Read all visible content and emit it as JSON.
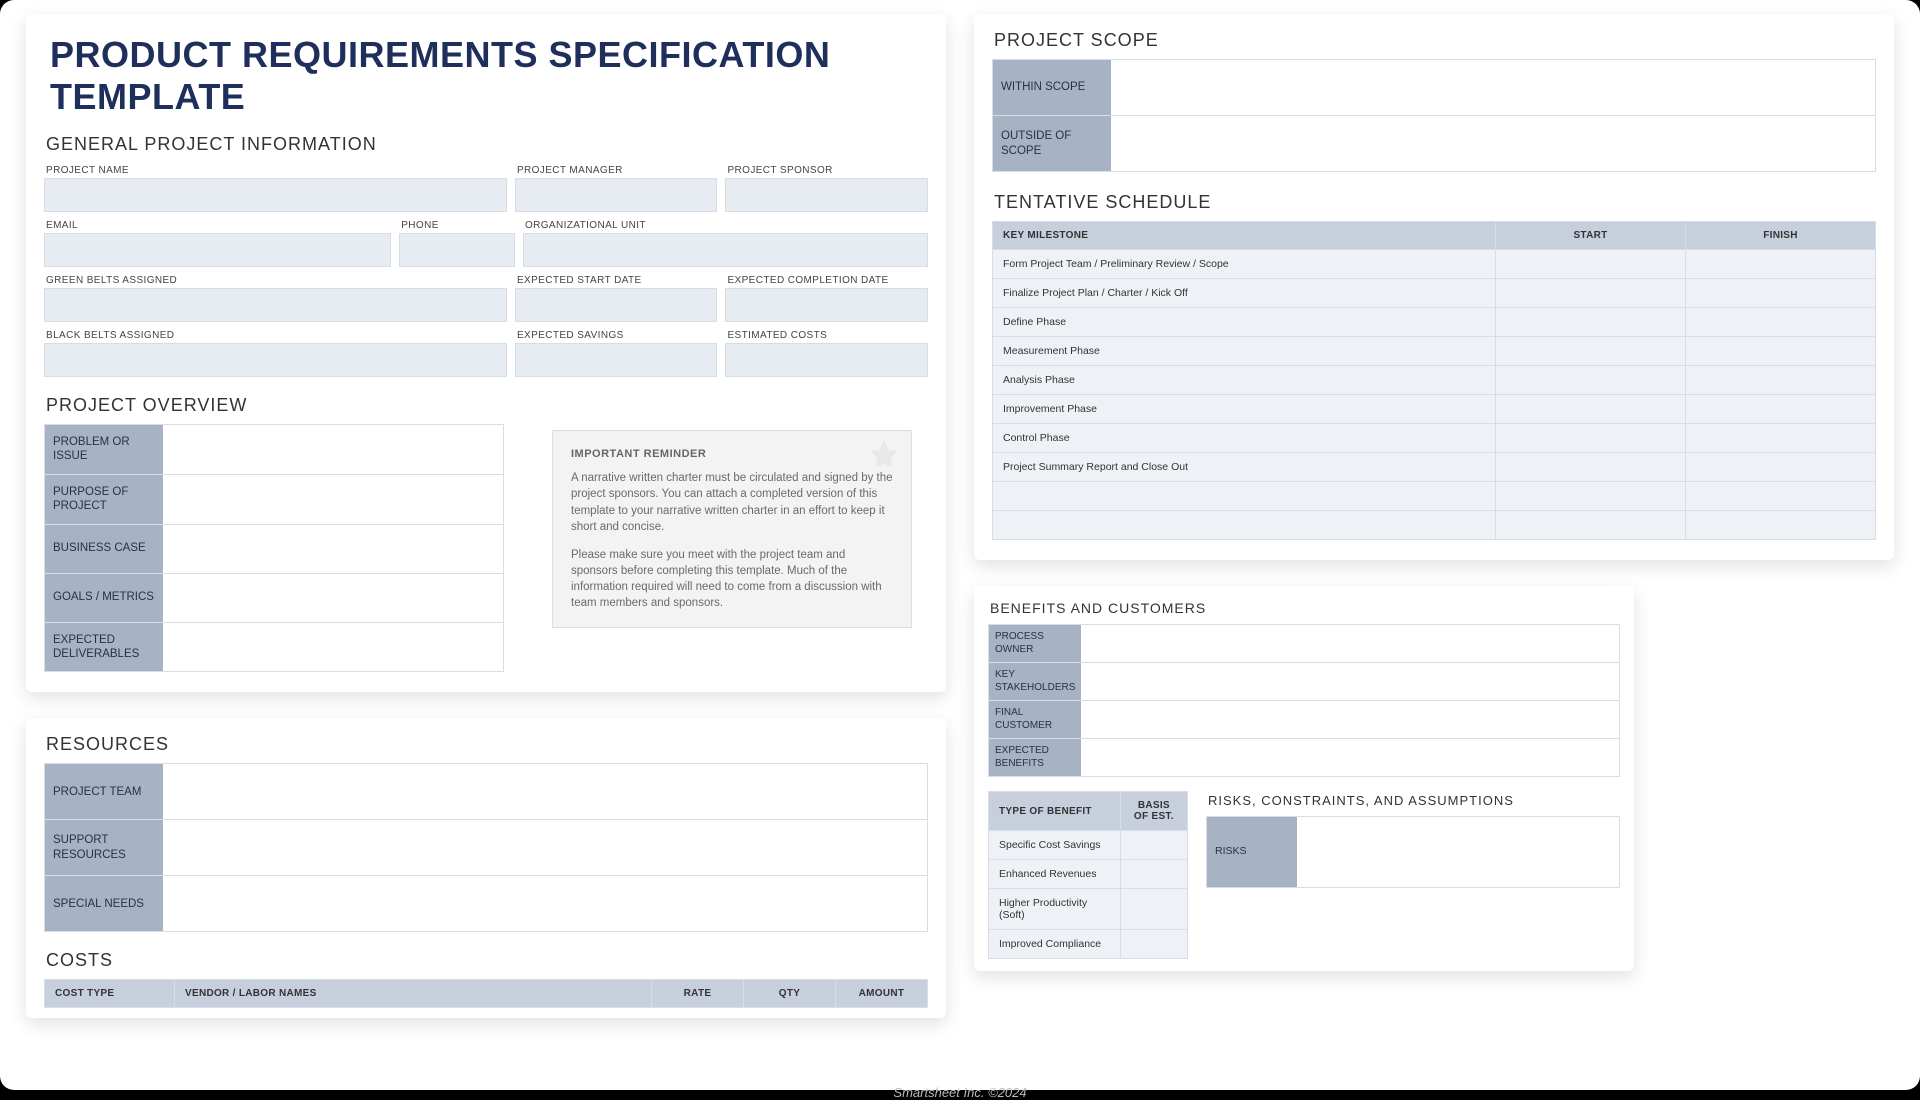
{
  "colors": {
    "title": "#1d2f5a",
    "label_bg": "#a7b3c4",
    "input_bg": "#e7ecf2",
    "header_bg": "#c6cfdb",
    "cell_bg": "#eef1f6",
    "border": "#d7dde4"
  },
  "footer": "Smartsheet Inc. ©2024",
  "main_title": "PRODUCT REQUIREMENTS SPECIFICATION TEMPLATE",
  "general": {
    "heading": "GENERAL PROJECT INFORMATION",
    "labels": {
      "project_name": "PROJECT NAME",
      "project_manager": "PROJECT MANAGER",
      "project_sponsor": "PROJECT SPONSOR",
      "email": "EMAIL",
      "phone": "PHONE",
      "org_unit": "ORGANIZATIONAL UNIT",
      "green_belts": "GREEN BELTS ASSIGNED",
      "exp_start": "EXPECTED START DATE",
      "exp_completion": "EXPECTED COMPLETION DATE",
      "black_belts": "BLACK BELTS ASSIGNED",
      "exp_savings": "EXPECTED SAVINGS",
      "est_costs": "ESTIMATED COSTS"
    }
  },
  "overview": {
    "heading": "PROJECT OVERVIEW",
    "rows": {
      "problem": "PROBLEM OR ISSUE",
      "purpose": "PURPOSE OF PROJECT",
      "business": "BUSINESS CASE",
      "goals": "GOALS / METRICS",
      "deliverables": "EXPECTED DELIVERABLES"
    },
    "reminder": {
      "title": "IMPORTANT REMINDER",
      "p1": "A narrative written charter must be circulated and signed by the project sponsors. You can attach a completed version of this template to your narrative written charter in an effort to keep it short and concise.",
      "p2": "Please make sure you meet with the project team and sponsors before completing this template. Much of the information required will need to come from a discussion with team members and sponsors."
    }
  },
  "resources": {
    "heading": "RESOURCES",
    "rows": {
      "team": "PROJECT TEAM",
      "support": "SUPPORT RESOURCES",
      "special": "SPECIAL NEEDS"
    }
  },
  "costs": {
    "heading": "COSTS",
    "headers": {
      "cost_type": "COST TYPE",
      "vendor": "VENDOR / LABOR NAMES",
      "rate": "RATE",
      "qty": "QTY",
      "amount": "AMOUNT"
    }
  },
  "scope": {
    "heading": "PROJECT SCOPE",
    "rows": {
      "within": "WITHIN SCOPE",
      "outside": "OUTSIDE OF SCOPE"
    }
  },
  "schedule": {
    "heading": "TENTATIVE SCHEDULE",
    "headers": {
      "milestone": "KEY MILESTONE",
      "start": "START",
      "finish": "FINISH"
    },
    "milestones": [
      "Form Project Team / Preliminary Review / Scope",
      "Finalize Project Plan / Charter / Kick Off",
      "Define Phase",
      "Measurement Phase",
      "Analysis Phase",
      "Improvement Phase",
      "Control Phase",
      "Project Summary Report and Close Out",
      "",
      ""
    ]
  },
  "benefits": {
    "heading": "BENEFITS AND CUSTOMERS",
    "rows": {
      "owner": "PROCESS OWNER",
      "stake": "KEY STAKEHOLDERS",
      "final": "FINAL CUSTOMER",
      "expected": "EXPECTED BENEFITS"
    },
    "table": {
      "h1": "TYPE OF BENEFIT",
      "h2": "BASIS OF EST.",
      "rows": [
        "Specific Cost Savings",
        "Enhanced Revenues",
        "Higher Productivity (Soft)",
        "Improved Compliance"
      ]
    }
  },
  "risks": {
    "heading": "RISKS, CONSTRAINTS, AND ASSUMPTIONS",
    "rows": {
      "risks": "RISKS"
    }
  }
}
